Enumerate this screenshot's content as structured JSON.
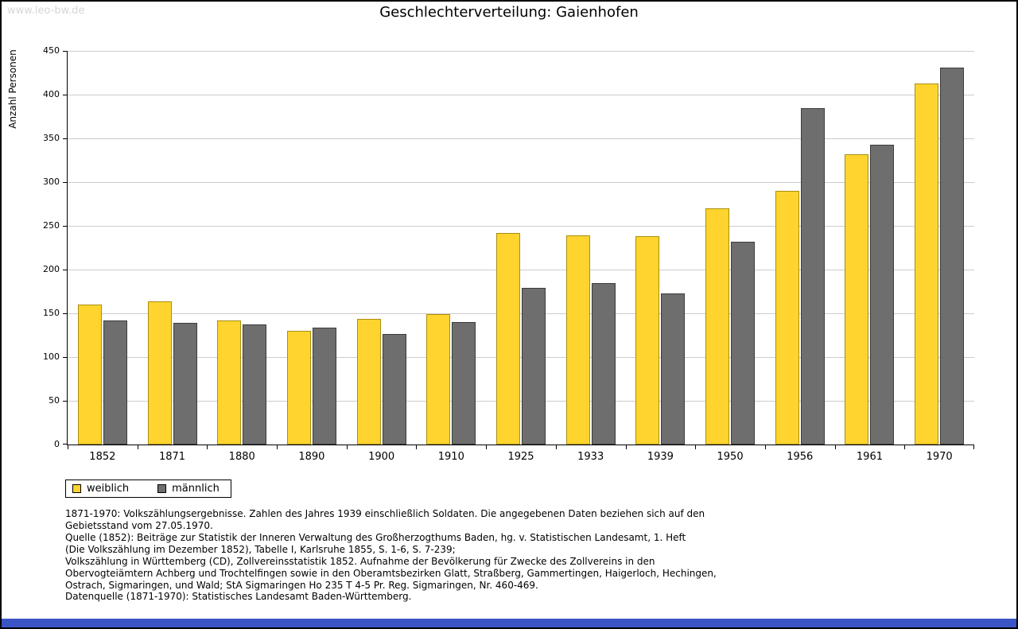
{
  "watermark": "www.leo-bw.de",
  "title": "Geschlechterverteilung: Gaienhofen",
  "chart_data": {
    "type": "bar",
    "title": "Geschlechterverteilung: Gaienhofen",
    "xlabel": "",
    "ylabel": "Anzahl Personen",
    "ylim": [
      0,
      450
    ],
    "ytick_step": 50,
    "grid": true,
    "legend_position": "bottom-left",
    "categories": [
      "1852",
      "1871",
      "1880",
      "1890",
      "1900",
      "1910",
      "1925",
      "1933",
      "1939",
      "1950",
      "1956",
      "1961",
      "1970"
    ],
    "series": [
      {
        "name": "weiblich",
        "color": "#ffd42e",
        "border": "#a88f10",
        "values": [
          160,
          164,
          142,
          130,
          144,
          149,
          242,
          239,
          238,
          270,
          290,
          332,
          413
        ]
      },
      {
        "name": "männlich",
        "color": "#6e6e6e",
        "border": "#3c3c3c",
        "values": [
          142,
          139,
          137,
          134,
          126,
          140,
          179,
          185,
          173,
          232,
          385,
          343,
          431
        ]
      }
    ]
  },
  "notes": {
    "main": "1871-1970: Volkszählungsergebnisse. Zahlen des Jahres 1939 einschließlich Soldaten. Die angegebenen Daten beziehen sich auf den\nGebietsstand vom 27.05.1970.\nQuelle (1852): Beiträge zur Statistik der Inneren Verwaltung des Großherzogthums Baden, hg. v. Statistischen Landesamt, 1. Heft\n(Die Volkszählung im Dezember 1852), Tabelle I, Karlsruhe 1855, S. 1-6, S. 7-239;\nVolkszählung in Württemberg (CD), Zollvereinsstatistik 1852. Aufnahme der Bevölkerung für Zwecke des Zollvereins in den\nObervogteiämtern Achberg und Trochtelfingen sowie in den Oberamtsbezirken Glatt, Straßberg, Gammertingen, Haigerloch, Hechingen,\nOstrach, Sigmaringen, und Wald; StA Sigmaringen Ho 235 T 4-5 Pr. Reg. Sigmaringen, Nr. 460-469.",
    "datasource": "Datenquelle (1871-1970): Statistisches Landesamt Baden-Württemberg."
  },
  "colors": {
    "bottom_bar": "#3c55c6",
    "gridline": "#cccccc",
    "watermark": "#d6d6d6"
  }
}
